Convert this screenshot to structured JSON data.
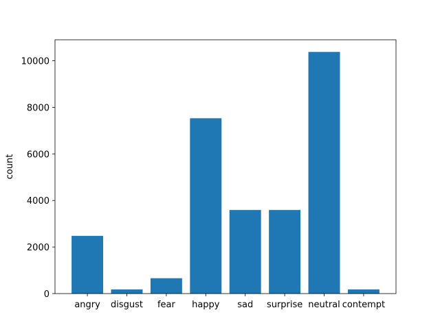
{
  "chart_data": {
    "type": "bar",
    "categories": [
      "angry",
      "disgust",
      "fear",
      "happy",
      "sad",
      "surprise",
      "neutral",
      "contempt"
    ],
    "values": [
      2480,
      180,
      660,
      7530,
      3590,
      3590,
      10380,
      180
    ],
    "xlabel": "",
    "ylabel": "count",
    "ylim": [
      0,
      10900
    ],
    "yticks": [
      0,
      2000,
      4000,
      6000,
      8000,
      10000
    ],
    "grid": false,
    "bar_color": "#1f77b4"
  }
}
